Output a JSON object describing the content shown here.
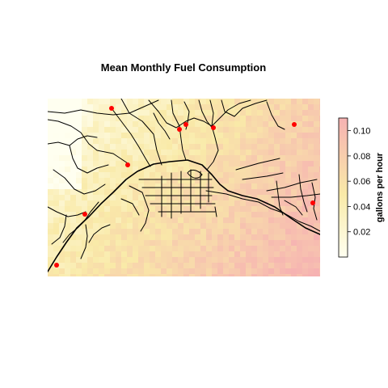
{
  "title": "Mean Monthly Fuel Consumption",
  "legend": {
    "title": "gallons per hour",
    "ticks": [
      "0.10",
      "0.08",
      "0.06",
      "0.04",
      "0.02"
    ],
    "tick_values": [
      0.1,
      0.08,
      0.06,
      0.04,
      0.02
    ],
    "range": [
      0.0,
      0.11
    ],
    "colors": {
      "low": "#fffff0",
      "mid": "#f9eaa8",
      "high": "#f6b2b2"
    }
  },
  "map": {
    "layers": [
      "fuel-consumption-raster",
      "road-network",
      "sensor-points"
    ],
    "point_color": "#ff0000",
    "road_color": "#000000"
  }
}
